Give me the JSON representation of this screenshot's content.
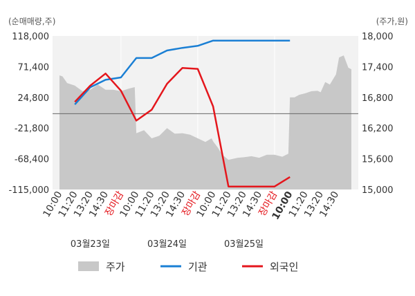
{
  "chart_data": {
    "type": "line",
    "left_axis_unit": "(순매매량,주)",
    "right_axis_unit": "(주가,원)",
    "left_ticks": [
      "118,000",
      "71,400",
      "24,800",
      "-21,800",
      "-68,400",
      "-115,000"
    ],
    "right_ticks": [
      "18,000",
      "17,400",
      "16,800",
      "16,200",
      "15,600",
      "15,000"
    ],
    "left_ylim": [
      -115000,
      118000
    ],
    "right_ylim": [
      15000,
      18000
    ],
    "x_tick_labels": [
      "10:00",
      "11:20",
      "13:20",
      "14:30",
      "장마감",
      "10:00",
      "11:20",
      "13:20",
      "14:30",
      "장마감",
      "10:00",
      "11:20",
      "13:20",
      "14:30",
      "장마감",
      "10:00",
      "11:20",
      "13:20",
      "14:30"
    ],
    "x_tick_red": [
      false,
      false,
      false,
      false,
      true,
      false,
      false,
      false,
      false,
      true,
      false,
      false,
      false,
      false,
      true,
      false,
      false,
      false,
      false
    ],
    "x_tick_bold": [
      false,
      false,
      false,
      false,
      false,
      false,
      false,
      false,
      false,
      false,
      false,
      false,
      false,
      false,
      false,
      true,
      false,
      false,
      false
    ],
    "dates": [
      "03월23일",
      "03월24일",
      "03월25일"
    ],
    "legend": [
      {
        "name": "주가",
        "color": "#c8c8c8",
        "kind": "area"
      },
      {
        "name": "기관",
        "color": "#1a7fd4",
        "kind": "line"
      },
      {
        "name": "외국인",
        "color": "#e4161c",
        "kind": "line"
      }
    ],
    "series": [
      {
        "name": "주가",
        "axis": "right",
        "x": [
          0,
          0.2,
          0.5,
          1,
          1.5,
          2,
          2.5,
          3,
          3.5,
          4,
          4.5,
          4.9,
          5,
          5.5,
          6,
          6.5,
          7,
          7.5,
          8,
          8.5,
          9,
          9.5,
          9.9,
          10,
          10.3,
          10.6,
          11,
          11.3,
          11.6,
          12,
          12.5,
          13,
          13.5,
          14,
          14.5,
          14.9,
          15,
          15.3,
          15.6,
          16,
          16.4,
          16.8,
          17,
          17.3,
          17.6,
          18,
          18.2,
          18.5,
          18.8,
          19
        ],
        "values": [
          17230,
          17210,
          17080,
          17030,
          16920,
          16950,
          17050,
          16950,
          16950,
          16920,
          16970,
          17000,
          16100,
          16160,
          16000,
          16050,
          16200,
          16090,
          16100,
          16070,
          16000,
          15930,
          16000,
          15940,
          15820,
          15680,
          15580,
          15600,
          15620,
          15630,
          15650,
          15620,
          15680,
          15680,
          15640,
          15700,
          16800,
          16800,
          16850,
          16880,
          16920,
          16930,
          16900,
          17100,
          17050,
          17250,
          17580,
          17620,
          17380,
          17350
        ]
      },
      {
        "name": "기관",
        "axis": "left",
        "x": [
          1,
          2,
          3,
          4,
          5,
          6,
          7,
          8,
          9,
          10,
          11,
          12,
          13,
          14,
          15
        ],
        "values": [
          14000,
          40000,
          51500,
          55000,
          84500,
          84500,
          96000,
          100000,
          103000,
          111000,
          111000,
          111000,
          111000,
          111000,
          111000
        ]
      },
      {
        "name": "외국인",
        "axis": "left",
        "x": [
          1,
          2,
          3,
          4,
          5,
          6,
          7,
          8,
          9,
          10,
          11,
          12,
          13,
          14,
          15
        ],
        "values": [
          18000,
          42500,
          61000,
          35000,
          -10500,
          6000,
          45500,
          69500,
          68000,
          11000,
          -110500,
          -110500,
          -110500,
          -110500,
          -96000
        ]
      }
    ]
  }
}
